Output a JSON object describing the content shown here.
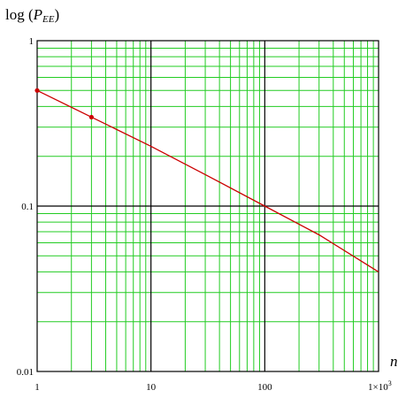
{
  "chart_data": {
    "type": "line",
    "title": "",
    "ylabel": {
      "prefix": "log (",
      "symbol": "P",
      "subscript": "EE",
      "suffix": ")"
    },
    "xlabel": "n",
    "x_scale": "log",
    "y_scale": "log",
    "xlim": [
      1,
      1000
    ],
    "ylim": [
      0.01,
      1
    ],
    "grid": true,
    "x_ticks": [
      {
        "value": 1,
        "label": "1"
      },
      {
        "value": 10,
        "label": "10"
      },
      {
        "value": 100,
        "label": "100"
      },
      {
        "value": 1000,
        "label": "1×10",
        "exponent": "3"
      }
    ],
    "y_ticks": [
      {
        "value": 1,
        "label": "1"
      },
      {
        "value": 0.1,
        "label": "0.1"
      },
      {
        "value": 0.01,
        "label": "0.01"
      }
    ],
    "series": [
      {
        "x": [
          1,
          3,
          10,
          30,
          100,
          300,
          1000
        ],
        "y": [
          0.5,
          0.345,
          0.23,
          0.155,
          0.1,
          0.067,
          0.04
        ]
      }
    ],
    "markers": {
      "x": [
        1,
        3
      ],
      "y": [
        0.5,
        0.345
      ]
    },
    "colors": {
      "line": "#cc0000",
      "marker": "#cc0000",
      "minor_grid": "#22cc22",
      "major_grid": "#000000",
      "axis": "#000000"
    }
  }
}
